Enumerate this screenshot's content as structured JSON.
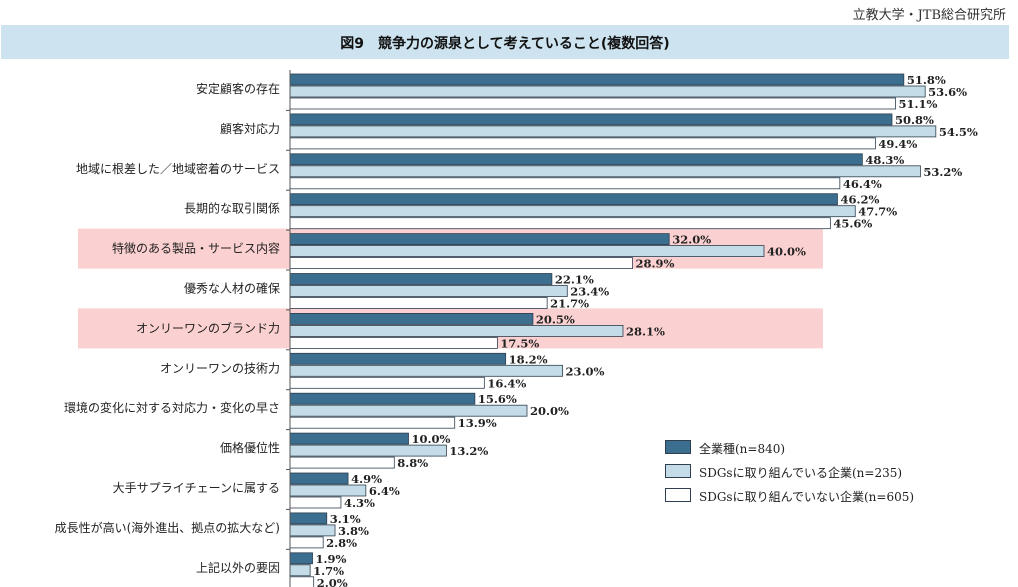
{
  "source": "立教大学・JTB総合研究所",
  "colors": {
    "all": "#3b6e8f",
    "sdgs": "#c3dce7",
    "non_sdgs": "#ffffff",
    "highlight": "#fbd0d0",
    "border": "#2f3f4f"
  },
  "legend": {
    "all": "全業種(n=840)",
    "sdgs": "SDGsに取り組んでいる企業(n=235)",
    "non_sdgs": "SDGsに取り組んでいない企業(n=605)"
  },
  "chart_data": {
    "type": "bar",
    "orientation": "horizontal",
    "title": "図9　競争力の源泉として考えていること(複数回答)",
    "unit": "%",
    "legend_position": "bottom-right",
    "xlim": [
      0,
      60
    ],
    "categories": [
      "安定顧客の存在",
      "顧客対応力",
      "地域に根差した／地域密着のサービス",
      "長期的な取引関係",
      "特徴のある製品・サービス内容",
      "優秀な人材の確保",
      "オンリーワンのブランド力",
      "オンリーワンの技術力",
      "環境の変化に対する対応力・変化の早さ",
      "価格優位性",
      "大手サプライチェーンに属する",
      "成長性が高い(海外進出、拠点の拡大など)",
      "上記以外の要因"
    ],
    "highlighted": [
      "特徴のある製品・サービス内容",
      "オンリーワンのブランド力"
    ],
    "series": [
      {
        "name": "全業種(n=840)",
        "values": [
          51.8,
          50.8,
          48.3,
          46.2,
          32.0,
          22.1,
          20.5,
          18.2,
          15.6,
          10.0,
          4.9,
          3.1,
          1.9
        ]
      },
      {
        "name": "SDGsに取り組んでいる企業(n=235)",
        "values": [
          53.6,
          54.5,
          53.2,
          47.7,
          40.0,
          23.4,
          28.1,
          23.0,
          20.0,
          13.2,
          6.4,
          3.8,
          1.7
        ]
      },
      {
        "name": "SDGsに取り組んでいない企業(n=605)",
        "values": [
          51.1,
          49.4,
          46.4,
          45.6,
          28.9,
          21.7,
          17.5,
          16.4,
          13.9,
          8.8,
          4.3,
          2.8,
          2.0
        ]
      }
    ]
  }
}
